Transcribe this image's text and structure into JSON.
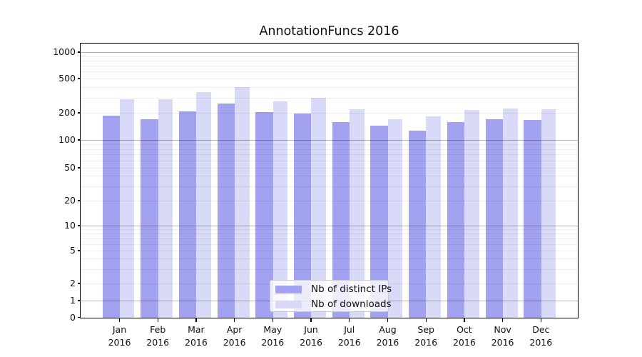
{
  "chart_data": {
    "type": "bar",
    "title": "AnnotationFuncs 2016",
    "categories": [
      "Jan 2016",
      "Feb 2016",
      "Mar 2016",
      "Apr 2016",
      "May 2016",
      "Jun 2016",
      "Jul 2016",
      "Aug 2016",
      "Sep 2016",
      "Oct 2016",
      "Nov 2016",
      "Dec 2016"
    ],
    "series": [
      {
        "name": "Nb of distinct IPs",
        "color": "#a2a2f1",
        "values": [
          185,
          170,
          209,
          257,
          203,
          196,
          158,
          144,
          127,
          157,
          169,
          168
        ]
      },
      {
        "name": "Nb of downloads",
        "color": "#d9d9f8",
        "values": [
          290,
          286,
          345,
          396,
          274,
          297,
          218,
          171,
          182,
          216,
          224,
          222
        ]
      }
    ],
    "yscale": "symlog",
    "ylim": [
      0,
      1250
    ],
    "yticks": [
      0,
      1,
      2,
      5,
      10,
      20,
      50,
      100,
      200,
      500,
      1000
    ],
    "grid": true,
    "legend": {
      "position": "inside-bottom-center"
    },
    "colors": {
      "major_grid": "rgba(0,0,0,0.30)",
      "minor_grid": "rgba(0,0,0,0.065)",
      "spine": "#000000",
      "background": "#ffffff"
    }
  }
}
